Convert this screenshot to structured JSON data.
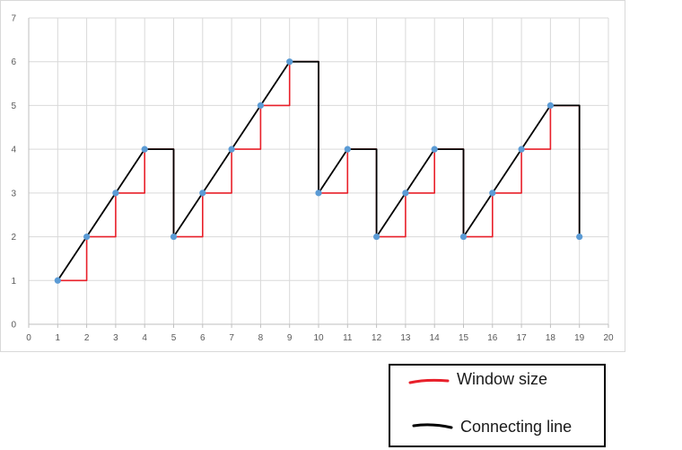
{
  "chart_data": {
    "type": "scatter",
    "xlim": [
      0,
      20
    ],
    "ylim": [
      0,
      7
    ],
    "x_ticks": [
      0,
      1,
      2,
      3,
      4,
      5,
      6,
      7,
      8,
      9,
      10,
      11,
      12,
      13,
      14,
      15,
      16,
      17,
      18,
      19,
      20
    ],
    "y_ticks": [
      0,
      1,
      2,
      3,
      4,
      5,
      6,
      7
    ],
    "grid": true,
    "points": {
      "color": "#5b9bd5",
      "x": [
        1,
        2,
        3,
        4,
        5,
        6,
        7,
        8,
        9,
        10,
        11,
        12,
        13,
        14,
        15,
        16,
        17,
        18,
        19
      ],
      "y": [
        1,
        2,
        3,
        4,
        2,
        3,
        4,
        5,
        6,
        3,
        4,
        2,
        3,
        4,
        2,
        3,
        4,
        5,
        2
      ]
    },
    "series": [
      {
        "name": "Window size",
        "color": "#e8202a",
        "style": "step",
        "x": [
          1,
          2,
          2,
          3,
          3,
          4,
          4,
          5,
          5,
          6,
          6,
          7,
          7,
          8,
          8,
          9,
          9,
          10,
          10,
          11,
          11,
          12,
          12,
          13,
          13,
          14,
          14,
          15,
          15,
          16,
          16,
          17,
          17,
          18,
          18,
          19,
          19
        ],
        "y": [
          1,
          1,
          2,
          2,
          3,
          3,
          4,
          4,
          2,
          2,
          3,
          3,
          4,
          4,
          5,
          5,
          6,
          6,
          3,
          3,
          4,
          4,
          2,
          2,
          3,
          3,
          4,
          4,
          2,
          2,
          3,
          3,
          4,
          4,
          5,
          5,
          2
        ]
      },
      {
        "name": "Connecting line",
        "color": "#000000",
        "style": "line",
        "x": [
          1,
          4,
          5,
          5,
          9,
          10,
          10,
          11,
          12,
          12,
          14,
          15,
          15,
          18,
          19,
          19
        ],
        "y": [
          1,
          4,
          4,
          2,
          6,
          6,
          3,
          4,
          4,
          2,
          4,
          4,
          2,
          5,
          5,
          2
        ]
      }
    ],
    "legend": {
      "position": "bottom-right",
      "entries": [
        {
          "label": "Window size",
          "color": "#e8202a"
        },
        {
          "label": "Connecting line",
          "color": "#000000"
        }
      ]
    }
  }
}
